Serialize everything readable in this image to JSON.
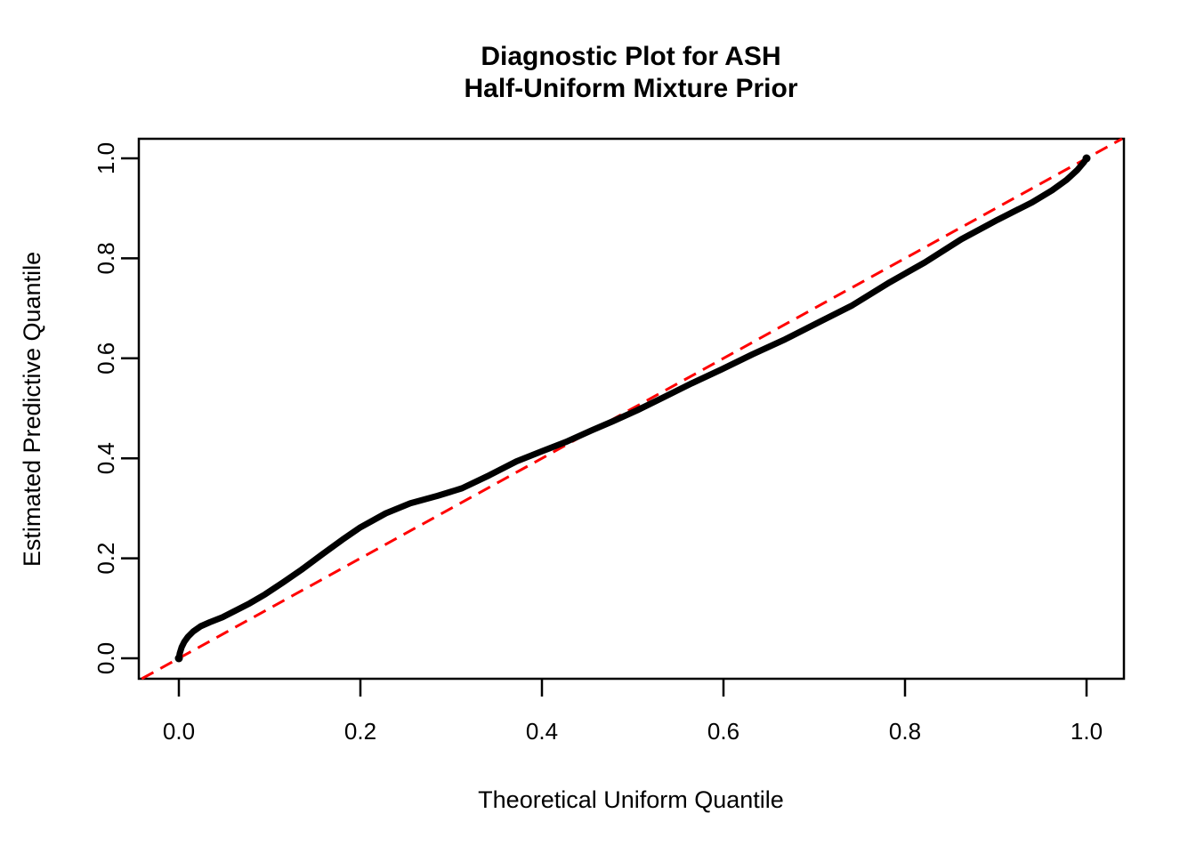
{
  "chart_data": {
    "type": "line",
    "title_lines": [
      "Diagnostic Plot for ASH",
      "Half-Uniform Mixture Prior"
    ],
    "xlabel": "Theoretical Uniform Quantile",
    "ylabel": "Estimated Predictive Quantile",
    "xlim": [
      0.0,
      1.0
    ],
    "ylim": [
      0.0,
      1.0
    ],
    "x_tick_labels": [
      "0.0",
      "0.2",
      "0.4",
      "0.6",
      "0.8",
      "1.0"
    ],
    "y_tick_labels": [
      "0.0",
      "0.2",
      "0.4",
      "0.6",
      "0.8",
      "1.0"
    ],
    "grid": false,
    "legend_position": "none",
    "colors": {
      "curve": "#000000",
      "reference_line": "#FF0000",
      "background": "#FFFFFF",
      "text": "#000000"
    },
    "series": [
      {
        "name": "estimated-predictive-quantiles",
        "type": "line",
        "color": "#000000",
        "line_style": "solid",
        "line_width": 7,
        "points": [
          [
            0.0,
            0.0
          ],
          [
            0.001,
            0.01
          ],
          [
            0.003,
            0.022
          ],
          [
            0.006,
            0.033
          ],
          [
            0.01,
            0.043
          ],
          [
            0.016,
            0.054
          ],
          [
            0.024,
            0.064
          ],
          [
            0.034,
            0.072
          ],
          [
            0.048,
            0.082
          ],
          [
            0.062,
            0.095
          ],
          [
            0.078,
            0.11
          ],
          [
            0.095,
            0.128
          ],
          [
            0.115,
            0.152
          ],
          [
            0.135,
            0.177
          ],
          [
            0.158,
            0.208
          ],
          [
            0.18,
            0.237
          ],
          [
            0.2,
            0.262
          ],
          [
            0.228,
            0.29
          ],
          [
            0.255,
            0.31
          ],
          [
            0.285,
            0.325
          ],
          [
            0.312,
            0.34
          ],
          [
            0.342,
            0.366
          ],
          [
            0.372,
            0.394
          ],
          [
            0.4,
            0.414
          ],
          [
            0.428,
            0.434
          ],
          [
            0.455,
            0.456
          ],
          [
            0.478,
            0.474
          ],
          [
            0.505,
            0.496
          ],
          [
            0.535,
            0.523
          ],
          [
            0.565,
            0.55
          ],
          [
            0.598,
            0.578
          ],
          [
            0.632,
            0.608
          ],
          [
            0.668,
            0.638
          ],
          [
            0.705,
            0.672
          ],
          [
            0.742,
            0.706
          ],
          [
            0.783,
            0.752
          ],
          [
            0.822,
            0.792
          ],
          [
            0.862,
            0.838
          ],
          [
            0.902,
            0.877
          ],
          [
            0.94,
            0.912
          ],
          [
            0.962,
            0.936
          ],
          [
            0.978,
            0.957
          ],
          [
            0.99,
            0.977
          ],
          [
            0.997,
            0.992
          ],
          [
            1.0,
            1.0
          ]
        ]
      },
      {
        "name": "identity-reference-line",
        "type": "line",
        "color": "#FF0000",
        "line_style": "dashed",
        "line_width": 3,
        "intercept": 0,
        "slope": 1
      }
    ]
  }
}
